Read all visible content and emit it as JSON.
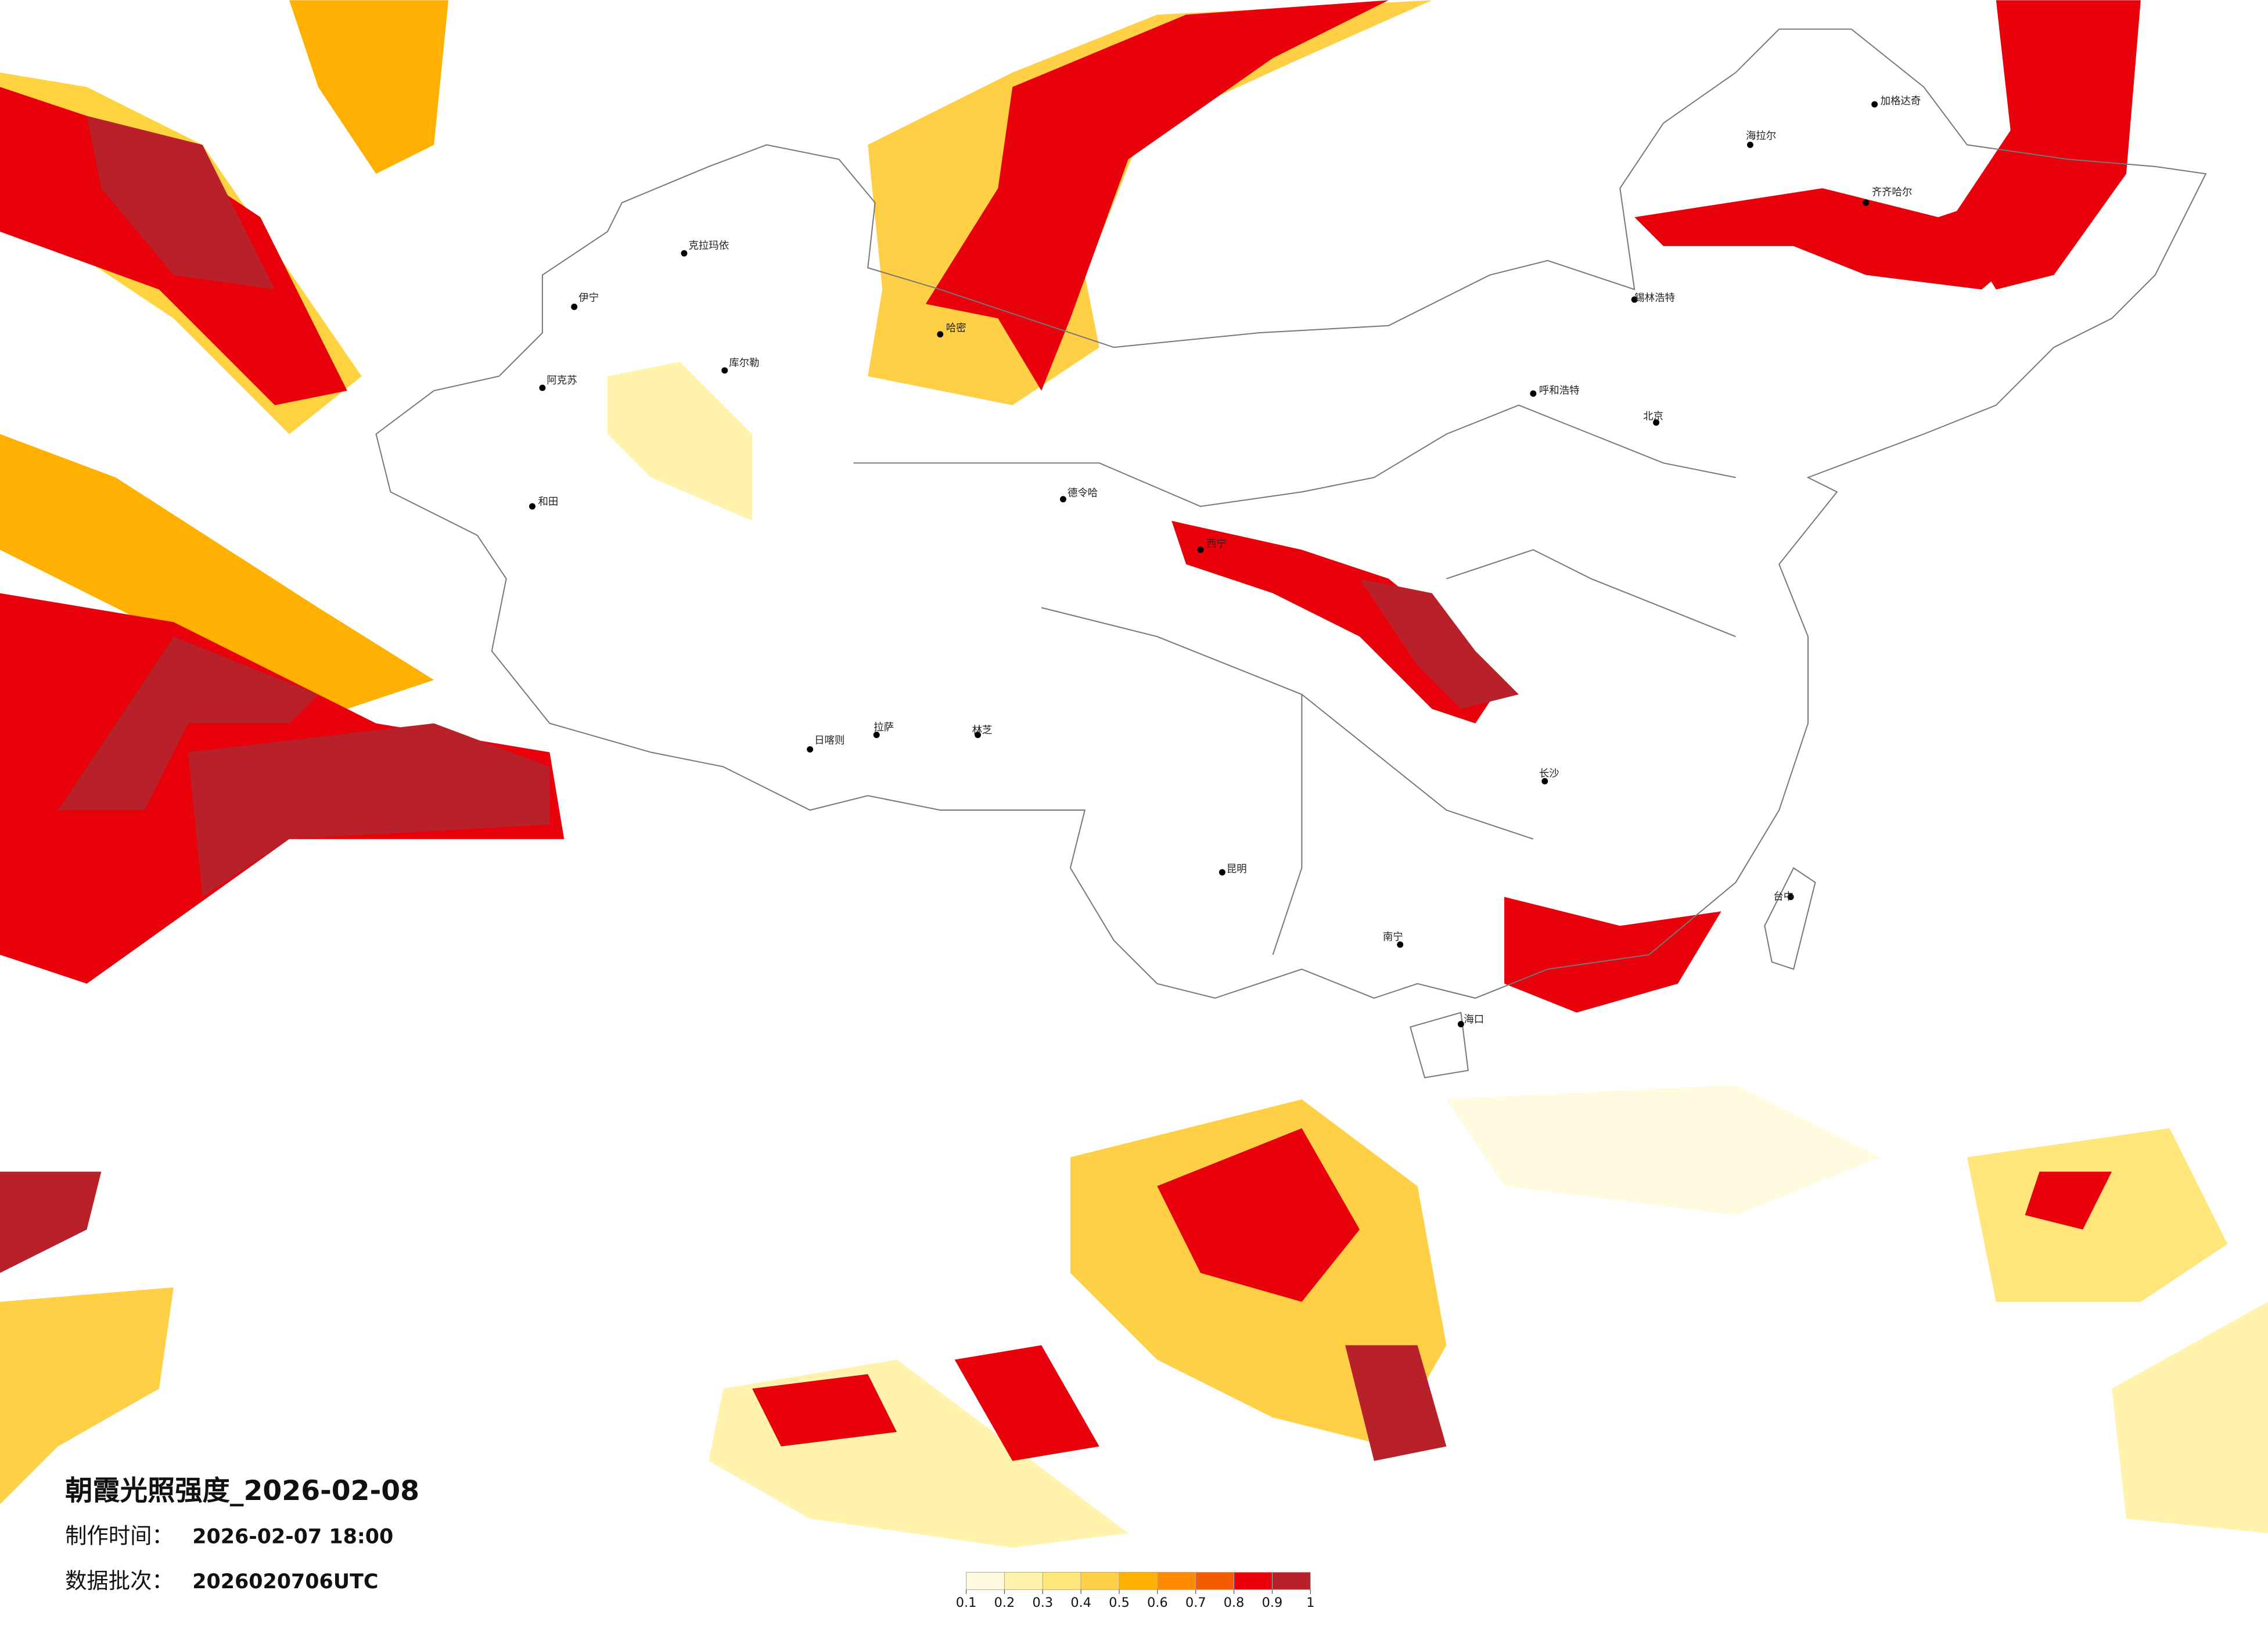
{
  "title": "朝霞光照强度_2026-02-08",
  "made_label": "制作时间：",
  "made_time": "2026-02-07 18:00",
  "batch_label": "数据批次：",
  "batch": "2026020706UTC",
  "colorbar": {
    "ticks": [
      0.1,
      0.2,
      0.3,
      0.4,
      0.5,
      0.6,
      0.7,
      0.8,
      0.9,
      1
    ],
    "colors": [
      "#fffbe0",
      "#fff3ad",
      "#ffe57a",
      "#ffcf45",
      "#ffb000",
      "#ff8a00",
      "#f55a00",
      "#e8000b",
      "#b8202a"
    ]
  },
  "cities": [
    "海拉尔",
    "加格达奇",
    "齐齐哈尔",
    "锡林浩特",
    "呼和浩特",
    "克拉玛依",
    "伊宁",
    "阿克苏",
    "和田",
    "库尔勒",
    "哈密",
    "德令哈",
    "西宁",
    "拉萨",
    "日喀则",
    "林芝",
    "昆明",
    "南宁",
    "海口",
    "台中",
    "长沙",
    "北京"
  ]
}
